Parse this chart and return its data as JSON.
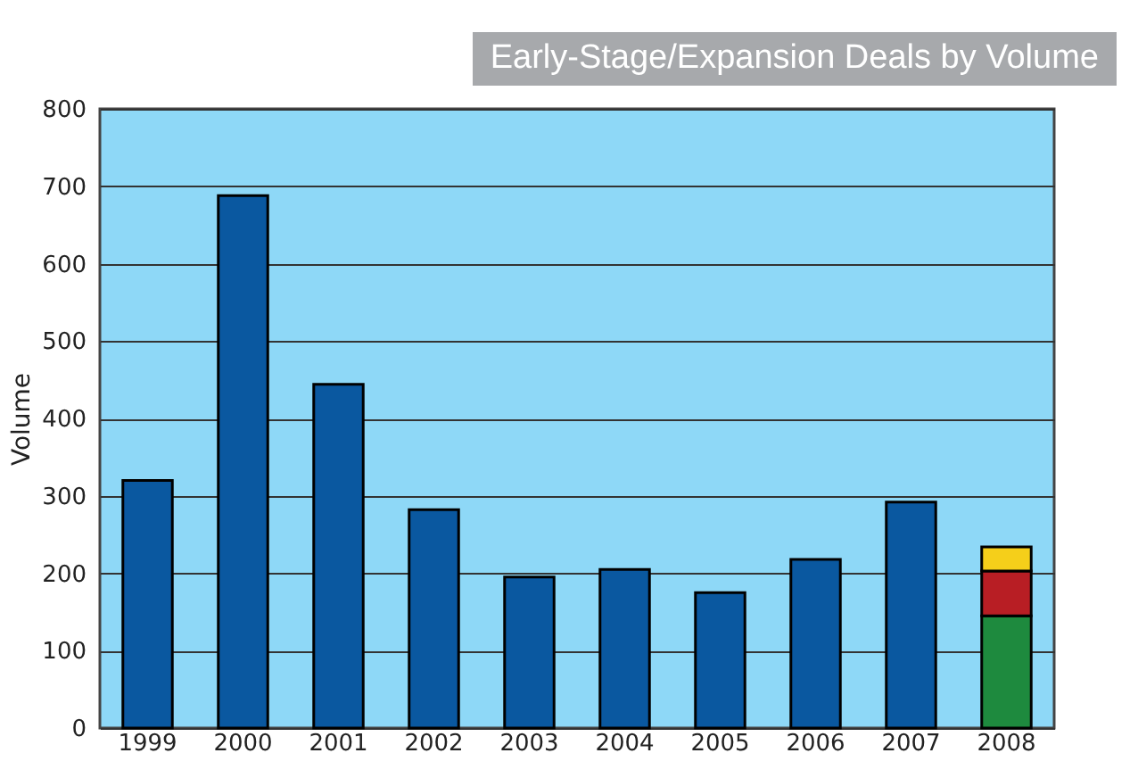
{
  "chart_data": {
    "type": "bar",
    "title": "Early-Stage/Expansion Deals by Volume",
    "ylabel": "Volume",
    "categories": [
      "1999",
      "2000",
      "2001",
      "2002",
      "2003",
      "2004",
      "2005",
      "2006",
      "2007",
      "2008"
    ],
    "stacked": true,
    "series": [
      {
        "color": "#0a58a0",
        "values": [
          320,
          688,
          444,
          282,
          195,
          205,
          175,
          218,
          292,
          null
        ]
      },
      {
        "color": "#1e8a3e",
        "values": [
          null,
          null,
          null,
          null,
          null,
          null,
          null,
          null,
          null,
          145
        ]
      },
      {
        "color": "#b81e24",
        "values": [
          null,
          null,
          null,
          null,
          null,
          null,
          null,
          null,
          null,
          58
        ]
      },
      {
        "color": "#f5cf1a",
        "values": [
          null,
          null,
          null,
          null,
          null,
          null,
          null,
          null,
          null,
          31
        ]
      }
    ],
    "ylim": [
      0,
      800
    ],
    "yticks": [
      0,
      100,
      200,
      300,
      400,
      500,
      600,
      700,
      800
    ],
    "grid": "y",
    "legend": false
  }
}
